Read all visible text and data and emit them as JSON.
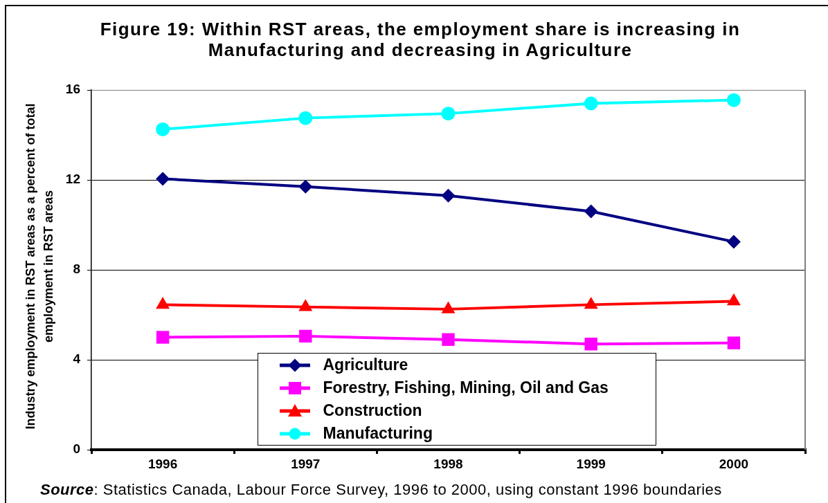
{
  "chart_data": {
    "type": "line",
    "title": "Figure 19: Within RST areas, the employment share is increasing in Manufacturing and decreasing in Agriculture",
    "ylabel": "Industry employment in RST areas as a percent of total employment in RST areas",
    "categories": [
      "1996",
      "1997",
      "1998",
      "1999",
      "2000"
    ],
    "series": [
      {
        "name": "Agriculture",
        "color": "#000080",
        "marker": "diamond",
        "values": [
          12.05,
          11.7,
          11.3,
          10.6,
          9.25
        ]
      },
      {
        "name": "Forestry, Fishing, Mining, Oil and Gas",
        "color": "#ff00ff",
        "marker": "square",
        "values": [
          5.0,
          5.05,
          4.9,
          4.7,
          4.75
        ]
      },
      {
        "name": "Construction",
        "color": "#ff0000",
        "marker": "triangle",
        "values": [
          6.45,
          6.35,
          6.25,
          6.45,
          6.6
        ]
      },
      {
        "name": "Manufacturing",
        "color": "#00ffff",
        "marker": "circle",
        "values": [
          14.25,
          14.75,
          14.95,
          15.4,
          15.55
        ]
      }
    ],
    "ylim": [
      0,
      16
    ],
    "yticks": [
      0,
      4,
      8,
      12,
      16
    ],
    "grid": "y",
    "legend": "bottom",
    "line_style": "solid",
    "annotations": [
      "Source: Statistics Canada, Labour Force Survey, 1996 to 2000, using constant 1996 boundaries"
    ]
  }
}
